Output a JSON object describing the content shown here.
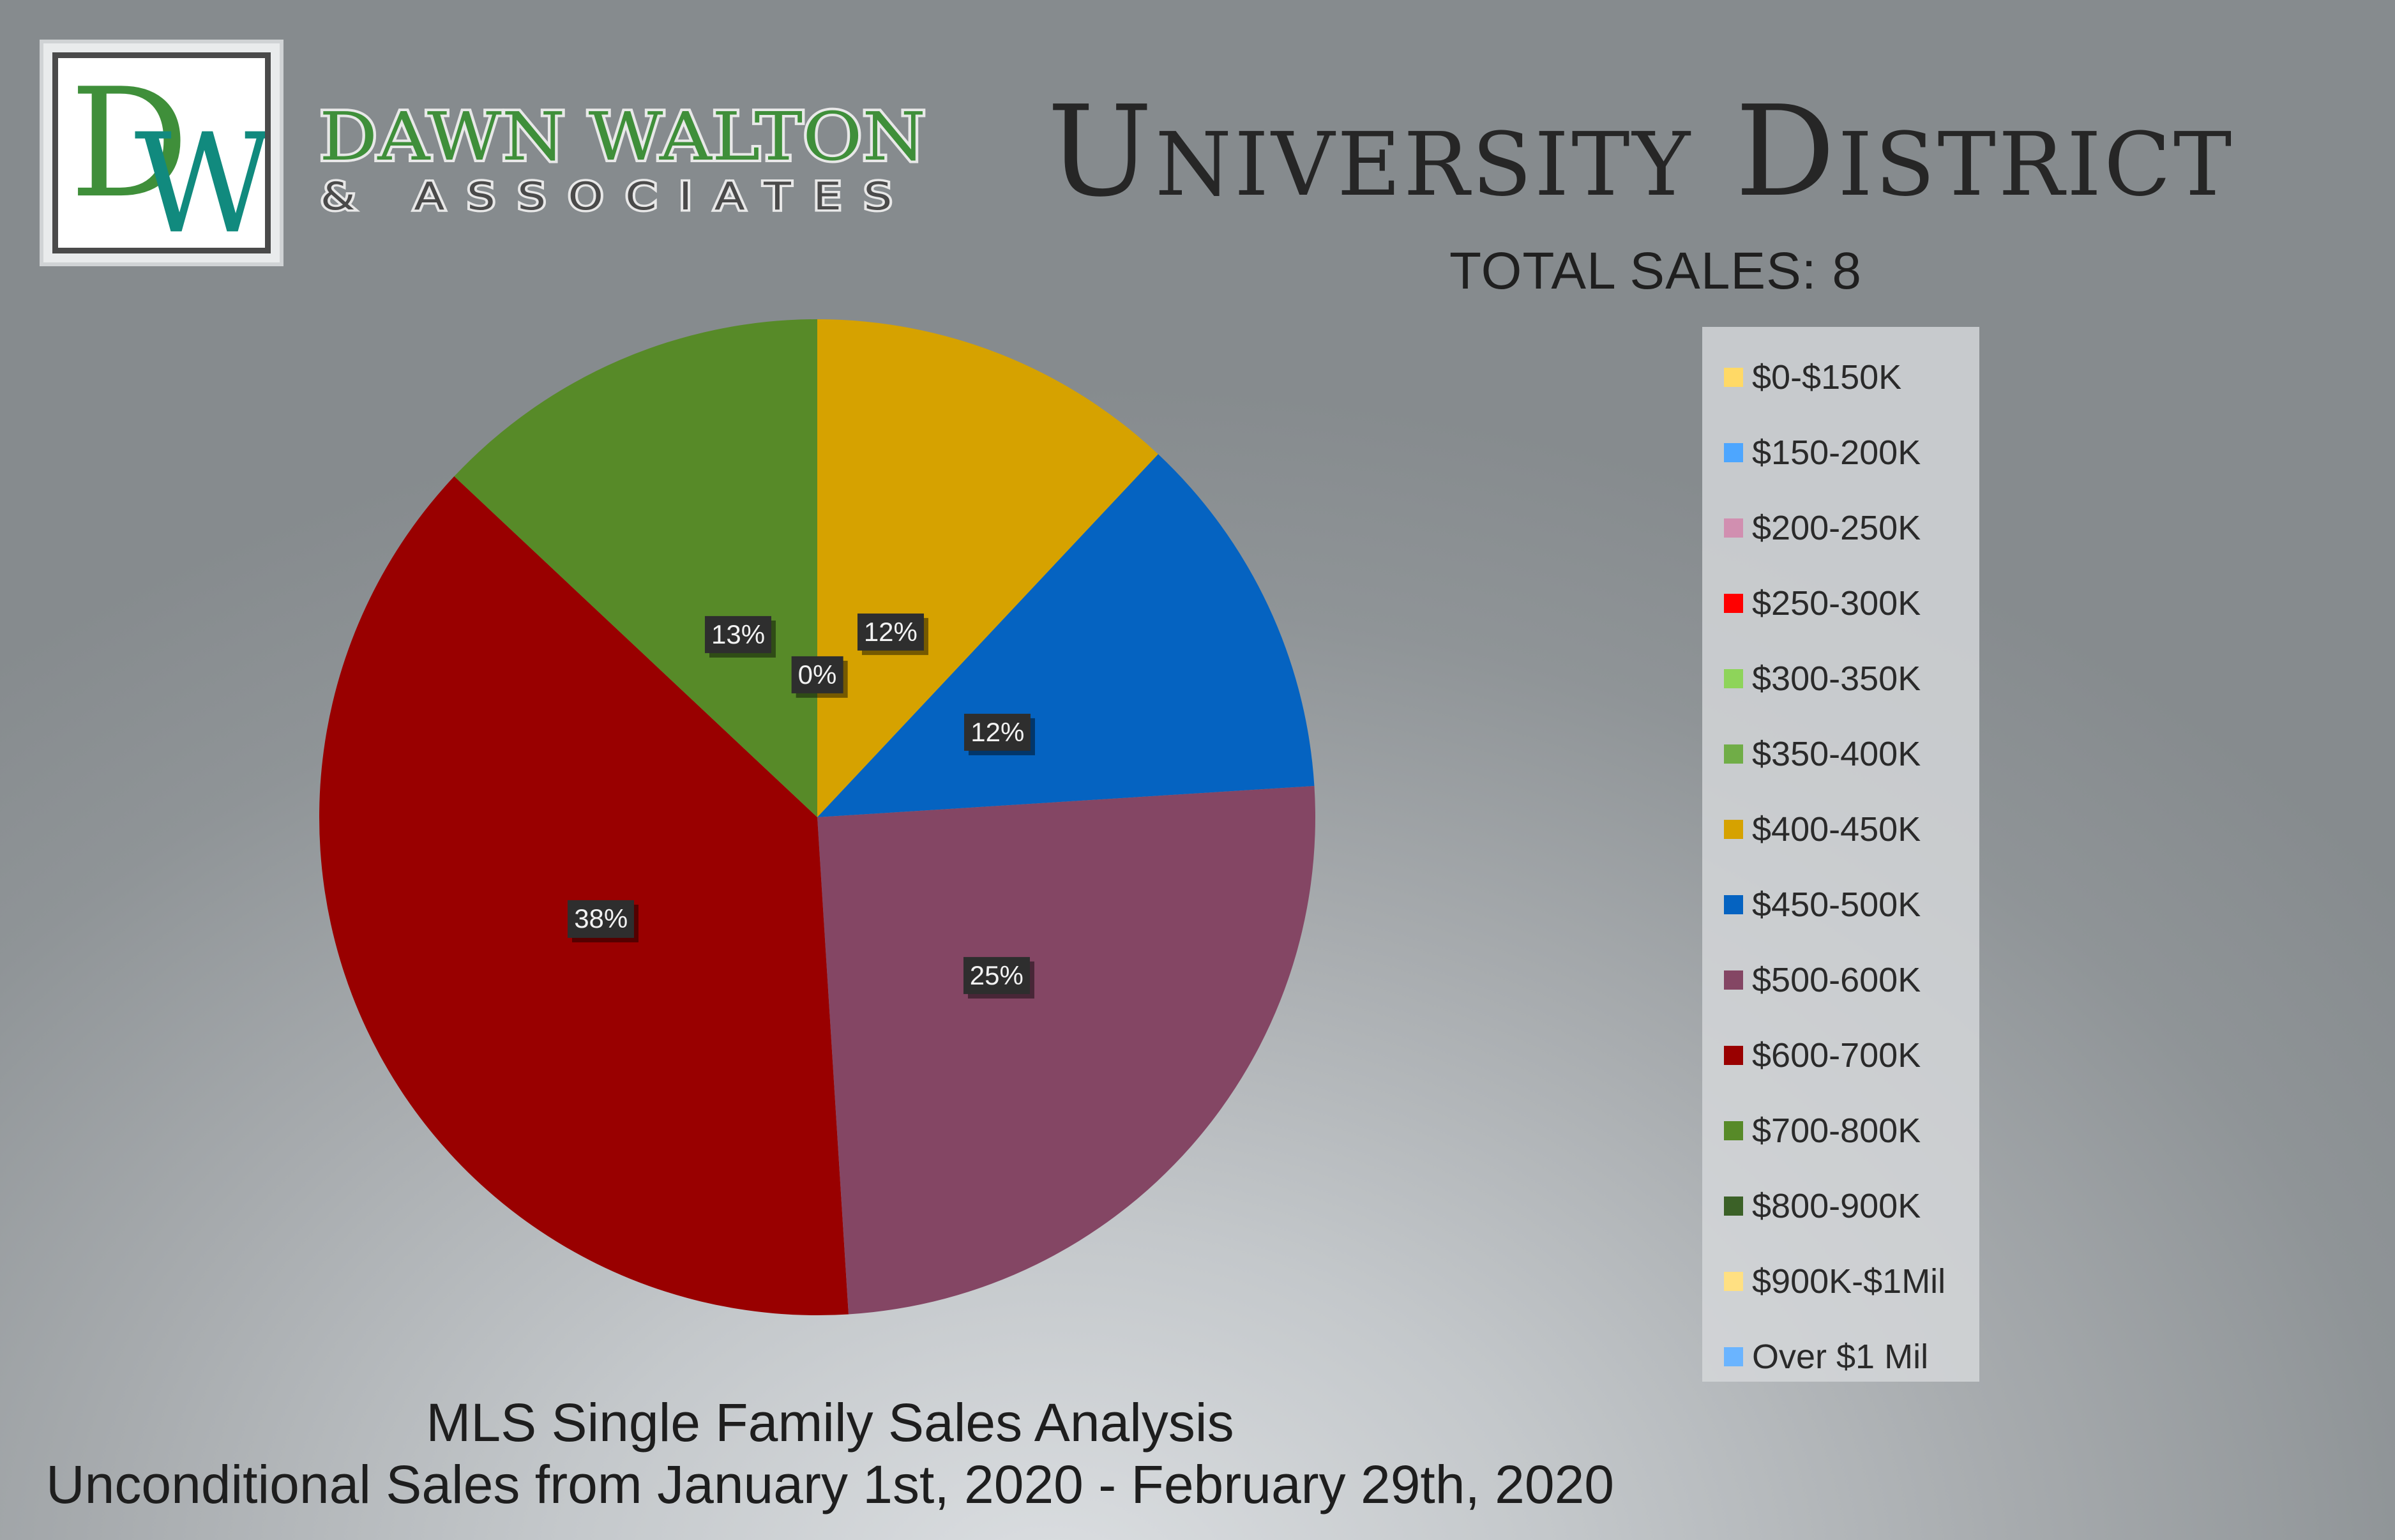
{
  "brand": {
    "monogram": "DW",
    "name_line1": "DAWN WALTON",
    "name_line2": "& ASSOCIATES",
    "colors": {
      "green": "#3f8f3a",
      "teal": "#118a7e",
      "dark": "#4a4a4a"
    }
  },
  "header": {
    "title": "University District",
    "total_sales": "TOTAL SALES: 8"
  },
  "footer": {
    "line1": "MLS Single Family Sales Analysis",
    "line2": "Unconditional Sales from January 1st, 2020 - February 29th, 2020"
  },
  "legend": {
    "items": [
      {
        "label": "$0-$150K",
        "color": "#ffd966"
      },
      {
        "label": "$150-200K",
        "color": "#4da6ff"
      },
      {
        "label": "$200-250K",
        "color": "#d18fb0"
      },
      {
        "label": "$250-300K",
        "color": "#ff0000"
      },
      {
        "label": "$300-350K",
        "color": "#8ed45a"
      },
      {
        "label": "$350-400K",
        "color": "#70ad47"
      },
      {
        "label": "$400-450K",
        "color": "#d6a200"
      },
      {
        "label": "$450-500K",
        "color": "#0563c1"
      },
      {
        "label": "$500-600K",
        "color": "#844664"
      },
      {
        "label": "$600-700K",
        "color": "#990000"
      },
      {
        "label": "$700-800K",
        "color": "#578a28"
      },
      {
        "label": "$800-900K",
        "color": "#3b6127"
      },
      {
        "label": "$900K-$1Mil",
        "color": "#ffe082"
      },
      {
        "label": "Over $1 Mil",
        "color": "#6ab4ff"
      }
    ]
  },
  "chart_data": {
    "type": "pie",
    "title": "",
    "slices": [
      {
        "category": "$400-450K",
        "value": 12,
        "label": "12%",
        "color": "#d6a200"
      },
      {
        "category": "$450-500K",
        "value": 12,
        "label": "12%",
        "color": "#0563c1"
      },
      {
        "category": "$500-600K",
        "value": 25,
        "label": "25%",
        "color": "#844664"
      },
      {
        "category": "$600-700K",
        "value": 38,
        "label": "38%",
        "color": "#990000"
      },
      {
        "category": "$700-800K",
        "value": 13,
        "label": "13%",
        "color": "#578a28"
      }
    ],
    "extra_labels": [
      "0%"
    ],
    "legend_position": "right"
  }
}
